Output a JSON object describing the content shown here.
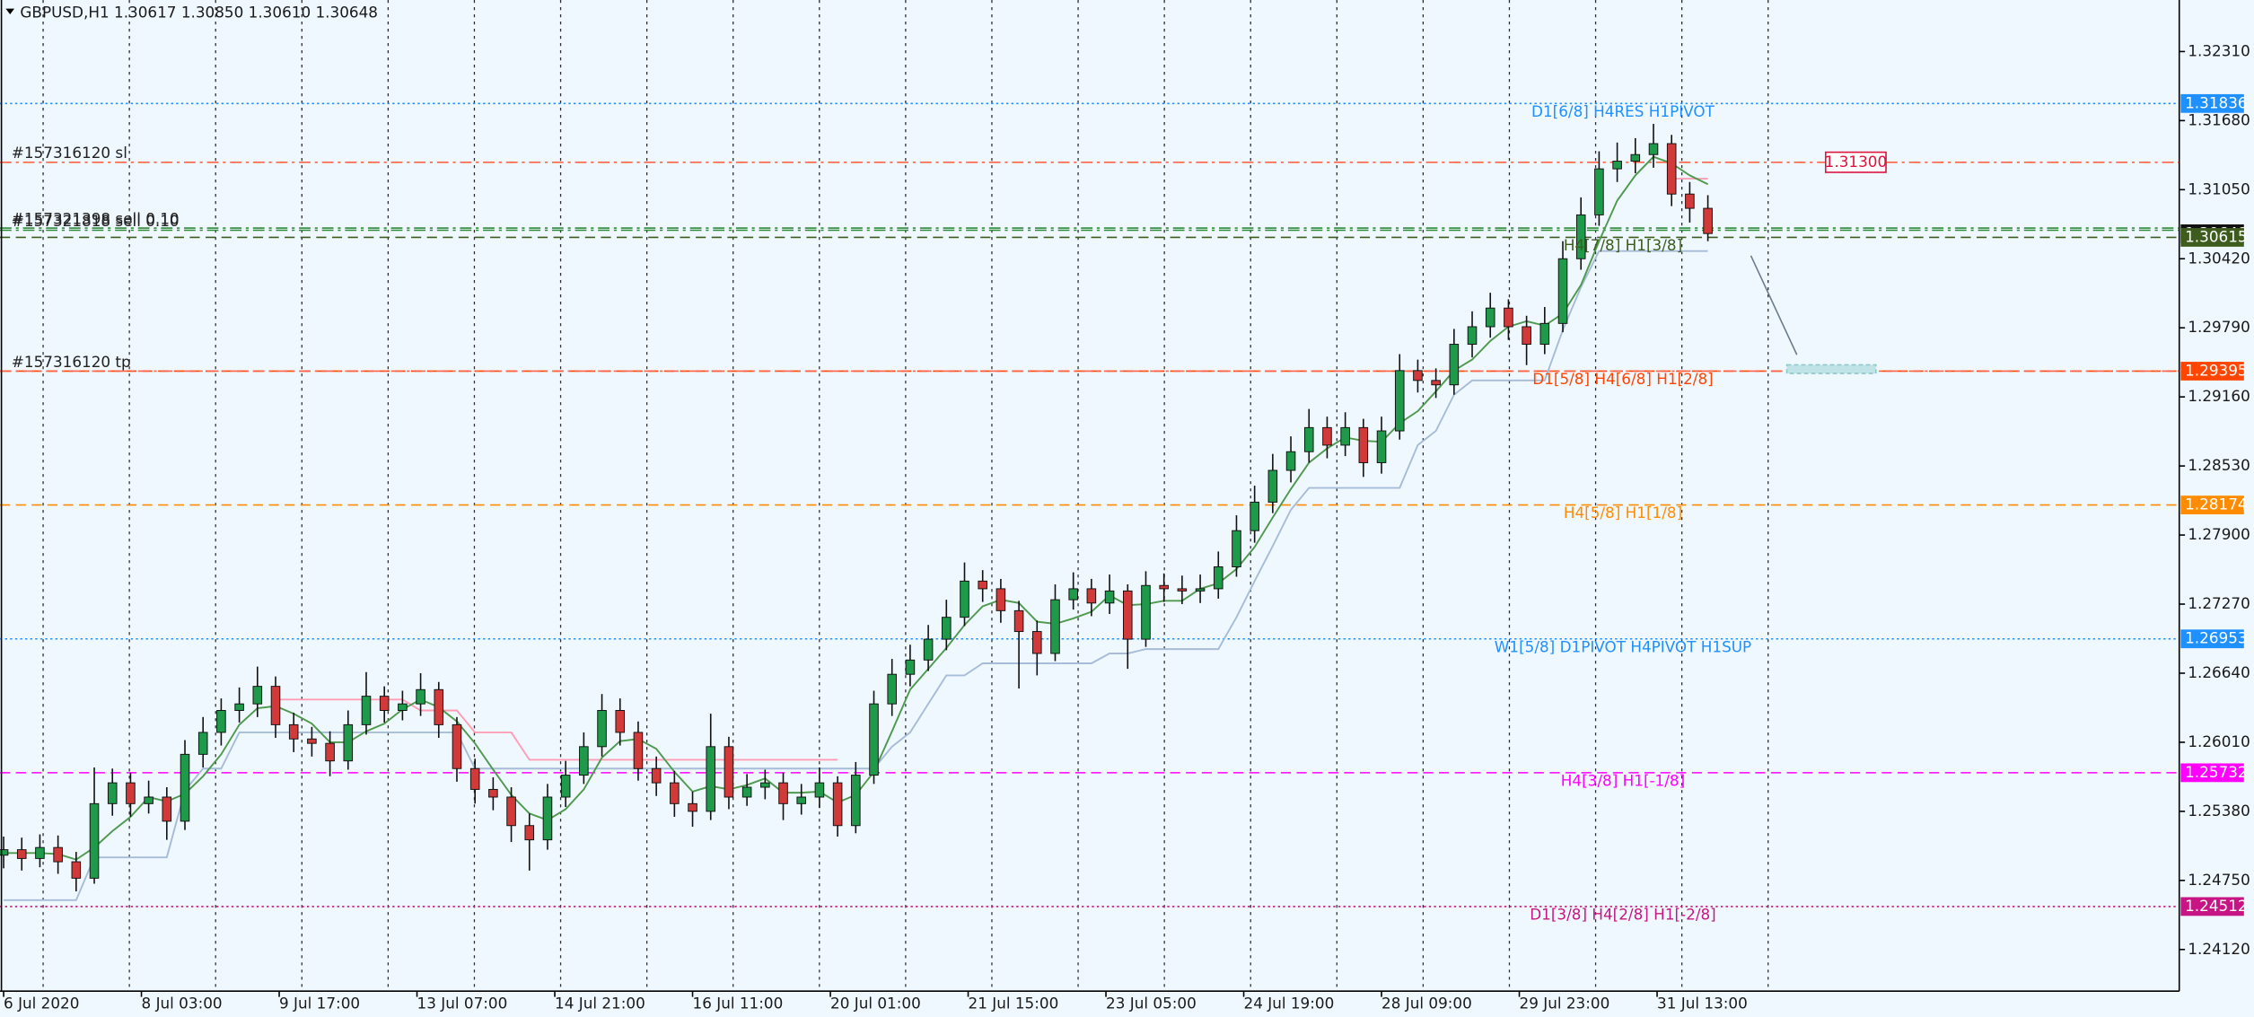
{
  "chart_data": {
    "type": "candlestick",
    "title": "GBPUSD,H1  1.30617 1.30850 1.30610 1.30648",
    "xlim": [
      -1,
      600
    ],
    "ylim": [
      1.2374,
      1.3278
    ],
    "xticks": [
      {
        "value": 0,
        "label": "6 Jul 2020"
      },
      {
        "value": 38,
        "label": "8 Jul 03:00"
      },
      {
        "value": 76,
        "label": "9 Jul 17:00"
      },
      {
        "value": 114,
        "label": "13 Jul 07:00"
      },
      {
        "value": 152,
        "label": "14 Jul 21:00"
      },
      {
        "value": 190,
        "label": "16 Jul 11:00"
      },
      {
        "value": 228,
        "label": "20 Jul 01:00"
      },
      {
        "value": 266,
        "label": "21 Jul 15:00"
      },
      {
        "value": 304,
        "label": "23 Jul 05:00"
      },
      {
        "value": 342,
        "label": "24 Jul 19:00"
      },
      {
        "value": 380,
        "label": "28 Jul 09:00"
      },
      {
        "value": 418,
        "label": "29 Jul 23:00"
      },
      {
        "value": 456,
        "label": "31 Jul 13:00"
      }
    ],
    "yticks": [
      {
        "value": 1.3231,
        "label": "1.32310"
      },
      {
        "value": 1.3168,
        "label": "1.31680"
      },
      {
        "value": 1.3105,
        "label": "1.31050"
      },
      {
        "value": 1.3042,
        "label": "1.30420"
      },
      {
        "value": 1.2979,
        "label": "1.29790"
      },
      {
        "value": 1.2916,
        "label": "1.29160"
      },
      {
        "value": 1.2853,
        "label": "1.28530"
      },
      {
        "value": 1.279,
        "label": "1.27900"
      },
      {
        "value": 1.2727,
        "label": "1.27270"
      },
      {
        "value": 1.2664,
        "label": "1.26640"
      },
      {
        "value": 1.2601,
        "label": "1.26010"
      },
      {
        "value": 1.2538,
        "label": "1.25380"
      },
      {
        "value": 1.2475,
        "label": "1.24750"
      },
      {
        "value": 1.2412,
        "label": "1.24120"
      }
    ],
    "up_color": "#1f9a4a",
    "down_color": "#d23a3a",
    "x": [
      0,
      5,
      10,
      15,
      20,
      25,
      30,
      35,
      40,
      45,
      50,
      55,
      60,
      65,
      70,
      75,
      80,
      85,
      90,
      95,
      100,
      105,
      110,
      115,
      120,
      125,
      130,
      135,
      140,
      145,
      150,
      155,
      160,
      165,
      170,
      175,
      180,
      185,
      190,
      195,
      200,
      205,
      210,
      215,
      220,
      225,
      230,
      235,
      240,
      245,
      250,
      255,
      260,
      265,
      270,
      275,
      280,
      285,
      290,
      295,
      300,
      305,
      310,
      315,
      320,
      325,
      330,
      335,
      340,
      345,
      350,
      355,
      360,
      365,
      370,
      375,
      380,
      385,
      390,
      395,
      400,
      405,
      410,
      415,
      420,
      425,
      430,
      435,
      440,
      445,
      450,
      455,
      460,
      465,
      470
    ],
    "open": [
      1.2498,
      1.2503,
      1.2495,
      1.2505,
      1.2492,
      1.2477,
      1.2545,
      1.2564,
      1.2545,
      1.2551,
      1.2529,
      1.259,
      1.261,
      1.263,
      1.2636,
      1.2652,
      1.2617,
      1.2604,
      1.26,
      1.2584,
      1.2617,
      1.2643,
      1.263,
      1.2636,
      1.2649,
      1.2617,
      1.2577,
      1.2558,
      1.2551,
      1.2525,
      1.2512,
      1.2551,
      1.2571,
      1.2597,
      1.263,
      1.261,
      1.2577,
      1.2564,
      1.2545,
      1.2538,
      1.2597,
      1.2551,
      1.256,
      1.2564,
      1.2545,
      1.2551,
      1.2564,
      1.2525,
      1.2571,
      1.2636,
      1.2663,
      1.2676,
      1.2695,
      1.2715,
      1.2748,
      1.2741,
      1.2721,
      1.2702,
      1.2682,
      1.2731,
      1.2741,
      1.2728,
      1.2739,
      1.2695,
      1.2744,
      1.2741,
      1.2739,
      1.2741,
      1.2761,
      1.2794,
      1.282,
      1.2849,
      1.2866,
      1.2888,
      1.2872,
      1.2888,
      1.2856,
      1.2885,
      1.294,
      1.2931,
      1.2927,
      1.2964,
      1.298,
      1.2997,
      1.298,
      1.2964,
      1.2983,
      1.3042,
      1.3082,
      1.3124,
      1.3131,
      1.3137,
      1.3147,
      1.3101,
      1.3088
    ],
    "high": [
      1.2515,
      1.2514,
      1.2517,
      1.2516,
      1.2501,
      1.2578,
      1.2577,
      1.2573,
      1.2566,
      1.256,
      1.2603,
      1.2624,
      1.2641,
      1.2651,
      1.267,
      1.2661,
      1.2628,
      1.2615,
      1.2611,
      1.263,
      1.2665,
      1.2652,
      1.2648,
      1.2664,
      1.2656,
      1.2624,
      1.2586,
      1.2569,
      1.256,
      1.2536,
      1.2563,
      1.2584,
      1.261,
      1.2645,
      1.2641,
      1.262,
      1.2588,
      1.2575,
      1.2556,
      1.2627,
      1.2606,
      1.2572,
      1.2576,
      1.2573,
      1.2563,
      1.2578,
      1.257,
      1.2583,
      1.2648,
      1.2677,
      1.269,
      1.2708,
      1.2731,
      1.2765,
      1.2758,
      1.275,
      1.273,
      1.2712,
      1.2745,
      1.2756,
      1.275,
      1.2754,
      1.2745,
      1.2757,
      1.2755,
      1.2753,
      1.2754,
      1.2775,
      1.2808,
      1.2835,
      1.2864,
      1.288,
      1.2905,
      1.2898,
      1.2902,
      1.2896,
      1.2898,
      1.2955,
      1.295,
      1.2942,
      1.2978,
      1.2994,
      1.3011,
      1.3005,
      1.299,
      1.2998,
      1.3058,
      1.3098,
      1.314,
      1.3148,
      1.3152,
      1.3165,
      1.3155,
      1.3112,
      1.31
    ],
    "low": [
      1.2486,
      1.2484,
      1.2487,
      1.2481,
      1.2465,
      1.2472,
      1.2534,
      1.2533,
      1.2536,
      1.2512,
      1.2521,
      1.2578,
      1.2598,
      1.2619,
      1.2624,
      1.2605,
      1.2592,
      1.2588,
      1.257,
      1.2576,
      1.2608,
      1.2619,
      1.2621,
      1.2625,
      1.2605,
      1.2565,
      1.2545,
      1.2539,
      1.251,
      1.2484,
      1.2503,
      1.2542,
      1.2563,
      1.2588,
      1.2598,
      1.2566,
      1.2552,
      1.2533,
      1.2524,
      1.253,
      1.254,
      1.2543,
      1.2549,
      1.253,
      1.2535,
      1.2541,
      1.2515,
      1.2518,
      1.2563,
      1.2625,
      1.2652,
      1.2666,
      1.2685,
      1.2707,
      1.2729,
      1.271,
      1.265,
      1.2662,
      1.2675,
      1.2722,
      1.2716,
      1.2718,
      1.2668,
      1.2688,
      1.2729,
      1.2727,
      1.2728,
      1.2732,
      1.2752,
      1.2783,
      1.281,
      1.2838,
      1.2856,
      1.286,
      1.2862,
      1.2843,
      1.2846,
      1.2877,
      1.292,
      1.2915,
      1.2918,
      1.2952,
      1.297,
      1.2968,
      1.2945,
      1.2955,
      1.2975,
      1.3032,
      1.3072,
      1.3112,
      1.312,
      1.3125,
      1.309,
      1.3075,
      1.3058
    ],
    "close": [
      1.2503,
      1.2495,
      1.2505,
      1.2492,
      1.2477,
      1.2545,
      1.2564,
      1.2545,
      1.2551,
      1.2529,
      1.259,
      1.261,
      1.263,
      1.2636,
      1.2652,
      1.2617,
      1.2604,
      1.26,
      1.2584,
      1.2617,
      1.2643,
      1.263,
      1.2636,
      1.2649,
      1.2617,
      1.2577,
      1.2558,
      1.2551,
      1.2525,
      1.2512,
      1.2551,
      1.2571,
      1.2597,
      1.263,
      1.261,
      1.2577,
      1.2564,
      1.2545,
      1.2538,
      1.2597,
      1.2551,
      1.256,
      1.2564,
      1.2545,
      1.2551,
      1.2564,
      1.2525,
      1.2571,
      1.2636,
      1.2663,
      1.2676,
      1.2695,
      1.2715,
      1.2748,
      1.2741,
      1.2721,
      1.2702,
      1.2682,
      1.2731,
      1.2741,
      1.2728,
      1.2739,
      1.2695,
      1.2744,
      1.2741,
      1.2739,
      1.2741,
      1.2761,
      1.2794,
      1.282,
      1.2849,
      1.2866,
      1.2888,
      1.2872,
      1.2888,
      1.2856,
      1.2885,
      1.294,
      1.2931,
      1.2927,
      1.2964,
      1.298,
      1.2997,
      1.298,
      1.2964,
      1.2983,
      1.3042,
      1.3082,
      1.3124,
      1.3131,
      1.3137,
      1.3147,
      1.3101,
      1.3088,
      1.3065
    ],
    "lines": [
      {
        "color": "#a6bcd8",
        "values": [
          1.2457,
          1.2457,
          1.2457,
          1.2457,
          1.2457,
          1.2496,
          1.2496,
          1.2496,
          1.2496,
          1.2496,
          1.2557,
          1.2577,
          1.2577,
          1.261,
          1.261,
          1.261,
          1.261,
          1.261,
          1.261,
          1.261,
          1.261,
          1.261,
          1.261,
          1.261,
          1.261,
          1.261,
          1.2577,
          1.2577,
          1.2577,
          1.2577,
          1.2577,
          1.2577,
          1.2577,
          1.2577,
          1.2577,
          1.2577,
          1.2577,
          1.2577,
          1.2577,
          1.2577,
          1.2577,
          1.2577,
          1.2577,
          1.2577,
          1.2577,
          1.2577,
          1.2577,
          1.2577,
          1.2577,
          1.2597,
          1.261,
          1.2636,
          1.2662,
          1.2662,
          1.2673,
          1.2673,
          1.2673,
          1.2673,
          1.2673,
          1.2673,
          1.2673,
          1.2682,
          1.2682,
          1.2686,
          1.2686,
          1.2686,
          1.2686,
          1.2686,
          1.2715,
          1.2748,
          1.278,
          1.2813,
          1.2833,
          1.2833,
          1.2833,
          1.2833,
          1.2833,
          1.2833,
          1.2872,
          1.2885,
          1.2918,
          1.2931,
          1.2931,
          1.2931,
          1.2931,
          1.2931,
          1.2977,
          1.3016,
          1.3049,
          1.3049,
          1.3049,
          1.3049,
          1.3049,
          1.3049,
          1.3049
        ]
      },
      {
        "color": "#ff9eb5",
        "values": [
          null,
          null,
          null,
          null,
          null,
          null,
          null,
          null,
          null,
          null,
          null,
          null,
          null,
          null,
          null,
          1.264,
          1.264,
          1.264,
          1.264,
          1.264,
          1.264,
          1.264,
          1.264,
          1.263,
          1.263,
          1.263,
          1.261,
          1.261,
          1.261,
          1.2585,
          1.2585,
          1.2585,
          1.2585,
          1.2585,
          1.2585,
          1.2585,
          1.2585,
          1.2585,
          1.2585,
          1.2585,
          1.2585,
          1.2585,
          1.2585,
          1.2585,
          1.2585,
          1.2585,
          1.2585,
          null,
          null,
          null,
          null,
          null,
          null,
          null,
          null,
          null,
          null,
          null,
          null,
          null,
          null,
          null,
          null,
          null,
          null,
          null,
          null,
          null,
          null,
          null,
          null,
          null,
          null,
          null,
          null,
          null,
          null,
          null,
          null,
          null,
          null,
          null,
          null,
          null,
          null,
          null,
          null,
          null,
          null,
          null,
          null,
          null,
          1.3115,
          1.3115,
          1.3115
        ]
      },
      {
        "color": "#4f9a4f",
        "values": [
          1.25,
          1.25,
          1.25,
          1.2499,
          1.2494,
          1.2505,
          1.252,
          1.2533,
          1.2551,
          1.2547,
          1.2554,
          1.257,
          1.259,
          1.2617,
          1.2632,
          1.2634,
          1.2627,
          1.2618,
          1.2601,
          1.2601,
          1.2611,
          1.2618,
          1.2631,
          1.264,
          1.2633,
          1.262,
          1.26,
          1.2576,
          1.2553,
          1.2536,
          1.253,
          1.254,
          1.2558,
          1.2587,
          1.2602,
          1.2604,
          1.2595,
          1.2574,
          1.2556,
          1.2561,
          1.2558,
          1.2562,
          1.2568,
          1.2555,
          1.2555,
          1.2556,
          1.2546,
          1.2553,
          1.2574,
          1.2611,
          1.2649,
          1.2668,
          1.2687,
          1.2708,
          1.2725,
          1.2731,
          1.2728,
          1.2711,
          1.2709,
          1.2714,
          1.272,
          1.2735,
          1.2726,
          1.2727,
          1.273,
          1.273,
          1.2741,
          1.2746,
          1.2759,
          1.2779,
          1.2806,
          1.2832,
          1.2856,
          1.2869,
          1.2879,
          1.2876,
          1.2875,
          1.2892,
          1.2903,
          1.2921,
          1.294,
          1.295,
          1.2967,
          1.298,
          1.2985,
          1.2981,
          1.2992,
          1.3018,
          1.3058,
          1.3095,
          1.3118,
          1.3135,
          1.3129,
          1.3118,
          1.311
        ]
      }
    ],
    "levels": [
      {
        "value": 1.31836,
        "text": "D1[6/8] H4RES H1PIVOT",
        "color": "#1e90ff",
        "style": "dotted"
      },
      {
        "value": 1.30648,
        "color": "#111111",
        "style": "none"
      },
      {
        "value": 1.30615,
        "text": "H4[7/8] H1[3/8]",
        "color": "#3d5c1e",
        "style": "dashed"
      },
      {
        "value": 1.29395,
        "text": "D1[5/8] H4[6/8] H1[2/8]",
        "color": "#ff4500",
        "style": "dashed"
      },
      {
        "value": 1.28174,
        "text": "H4[5/8] H1[1/8]",
        "color": "#ff8c00",
        "style": "dashed"
      },
      {
        "value": 1.26953,
        "text": "W1[5/8] D1PIVOT H4PIVOT H1SUP",
        "color": "#1e90ff",
        "style": "dotted"
      },
      {
        "value": 1.25732,
        "text": "H4[3/8] H1[-1/8]",
        "color": "#ff00ff",
        "style": "dashed"
      },
      {
        "value": 1.24512,
        "text": "D1[3/8] H4[2/8] H1[-2/8]",
        "color": "#c71585",
        "style": "dotted"
      }
    ],
    "orders": [
      {
        "value": 1.313,
        "label": "1.31300",
        "text": "#157316120 sl",
        "color": "#ff6347"
      },
      {
        "value": 1.307,
        "text": "#157321398 sell 0.10",
        "color": "#2e8b3a"
      },
      {
        "value": 1.3068,
        "text": "#157321818 sell 0.10",
        "color": "#2e8b3a"
      },
      {
        "value": 1.29395,
        "text": "#157316120 tp",
        "color": "#ff6347"
      }
    ]
  }
}
